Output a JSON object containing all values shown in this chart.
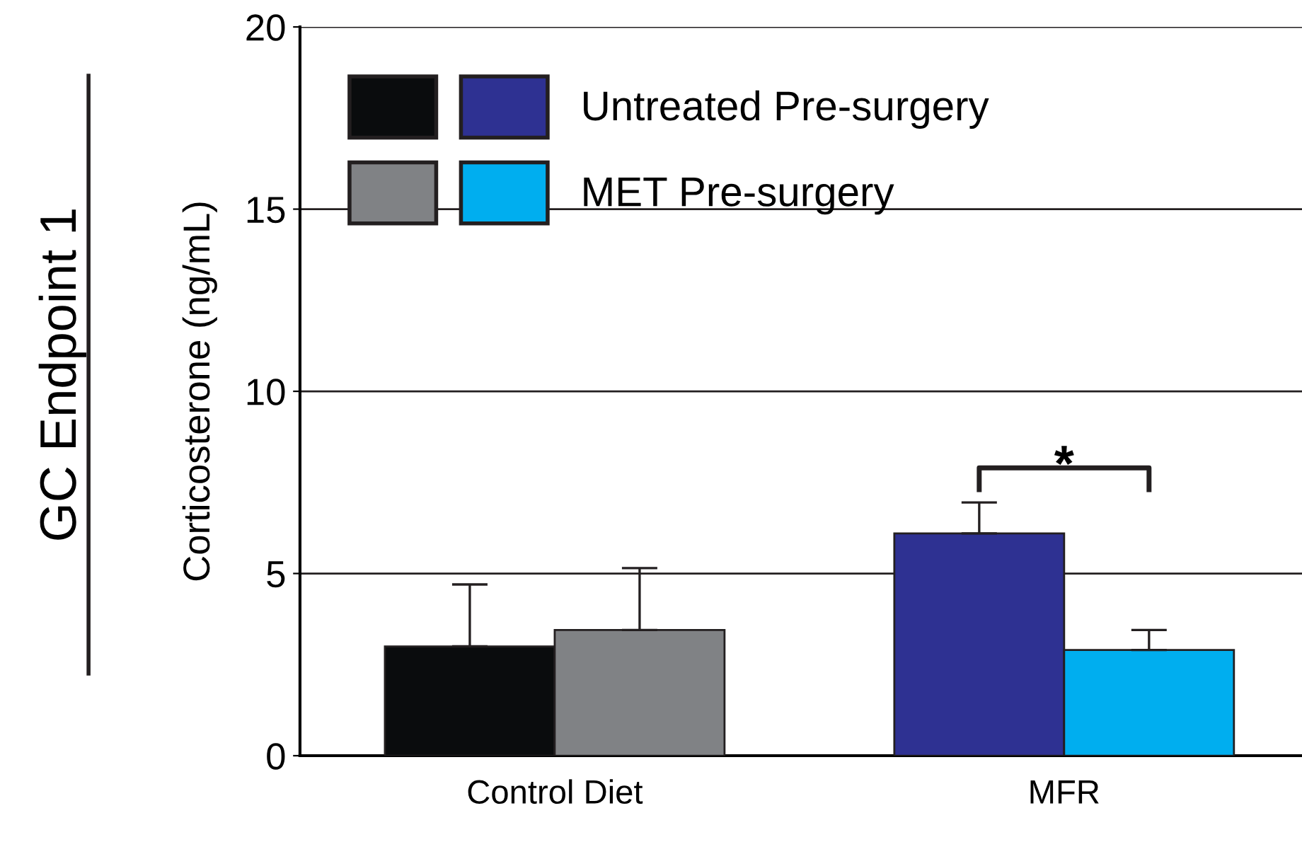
{
  "chart_data": {
    "type": "bar",
    "categories": [
      "Control Diet",
      "MFR"
    ],
    "series": [
      {
        "name": "Untreated Pre-surgery",
        "colors": [
          "#0a0c0d",
          "#2e3192"
        ],
        "values": [
          3.0,
          6.1
        ],
        "errors": [
          [
            3.0,
            4.7
          ],
          [
            6.1,
            6.95
          ]
        ]
      },
      {
        "name": "MET Pre-surgery",
        "colors": [
          "#808285",
          "#00aeef"
        ],
        "values": [
          3.45,
          2.9
        ],
        "errors": [
          [
            3.45,
            5.15
          ],
          [
            2.9,
            3.45
          ]
        ]
      }
    ],
    "ylabel": "Corticosterone (ng/mL)",
    "annotations": [
      "GC Endpoint 1",
      "*"
    ],
    "ylim": [
      0,
      20
    ],
    "yticks": [
      0,
      5,
      10,
      15,
      20
    ],
    "grid": "y",
    "legend": "top left"
  }
}
